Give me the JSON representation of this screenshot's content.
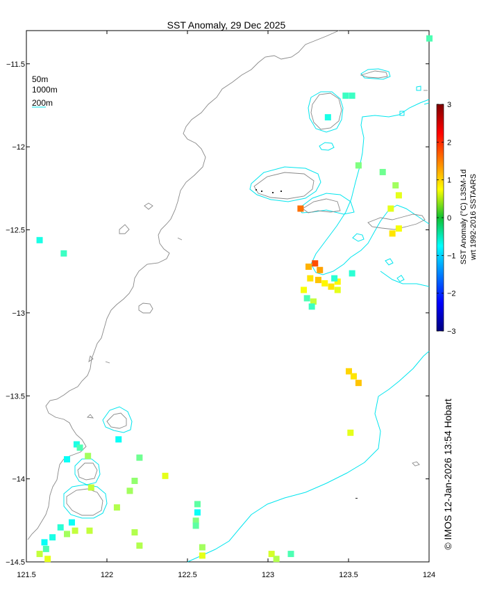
{
  "title": "SST Anomaly, 29 Dec 2025",
  "contour_legend": [
    "50m",
    "1000m",
    "200m"
  ],
  "colorbar": {
    "label_line1": "SST Anomaly (°C) L3SM-1d",
    "label_line2": "wrt 1992-2016 SSTAARS",
    "range": [
      -3,
      3
    ],
    "ticks": [
      "3",
      "2",
      "1",
      "0",
      "-1",
      "-2",
      "-3"
    ],
    "colormap": "jet"
  },
  "axes": {
    "x_ticks": [
      "121.5",
      "122",
      "122.5",
      "123",
      "123.5",
      "124"
    ],
    "y_ticks": [
      "-11.5",
      "-12",
      "-12.5",
      "-13",
      "-13.5",
      "-14",
      "-14.5"
    ],
    "x_range": [
      121.5,
      124
    ],
    "y_range": [
      -14.5,
      -11.3
    ]
  },
  "credit": "© IMOS 12-Jan-2026 13:54 Hobart",
  "colors": {
    "contour_200m": "#00e5ee",
    "contour_gray": "#888888",
    "pixel_green": "#10c030",
    "pixel_lime": "#88e010",
    "pixel_yellow": "#d8ee10",
    "pixel_orange": "#f0c000",
    "pixel_teal": "#00c0a0"
  },
  "sst_pixels": [
    {
      "lon": 124.0,
      "lat": -11.345,
      "anom": -0.3
    },
    {
      "lon": 123.48,
      "lat": -11.69,
      "anom": -0.4
    },
    {
      "lon": 123.52,
      "lat": -11.69,
      "anom": -0.4
    },
    {
      "lon": 123.37,
      "lat": -11.82,
      "anom": -0.6
    },
    {
      "lon": 123.56,
      "lat": -12.11,
      "anom": 0.0
    },
    {
      "lon": 123.71,
      "lat": -12.15,
      "anom": -0.1
    },
    {
      "lon": 123.79,
      "lat": -12.23,
      "anom": 0.2
    },
    {
      "lon": 123.81,
      "lat": -12.29,
      "anom": 0.6
    },
    {
      "lon": 123.76,
      "lat": -12.37,
      "anom": 0.6
    },
    {
      "lon": 123.2,
      "lat": -12.37,
      "anom": 1.6
    },
    {
      "lon": 123.77,
      "lat": -12.52,
      "anom": 0.9
    },
    {
      "lon": 123.81,
      "lat": -12.49,
      "anom": 0.7
    },
    {
      "lon": 121.58,
      "lat": -12.56,
      "anom": -0.6
    },
    {
      "lon": 121.73,
      "lat": -12.64,
      "anom": -0.4
    },
    {
      "lon": 123.25,
      "lat": -12.72,
      "anom": 1.2
    },
    {
      "lon": 123.29,
      "lat": -12.7,
      "anom": 1.8
    },
    {
      "lon": 123.32,
      "lat": -12.74,
      "anom": 1.3
    },
    {
      "lon": 123.26,
      "lat": -12.79,
      "anom": 0.9
    },
    {
      "lon": 123.31,
      "lat": -12.8,
      "anom": 1.1
    },
    {
      "lon": 123.35,
      "lat": -12.82,
      "anom": 0.8
    },
    {
      "lon": 123.39,
      "lat": -12.84,
      "anom": 0.9
    },
    {
      "lon": 123.43,
      "lat": -12.81,
      "anom": 0.8
    },
    {
      "lon": 123.43,
      "lat": -12.86,
      "anom": 0.6
    },
    {
      "lon": 123.41,
      "lat": -12.79,
      "anom": -0.5
    },
    {
      "lon": 123.52,
      "lat": -12.76,
      "anom": -0.5
    },
    {
      "lon": 123.22,
      "lat": -12.86,
      "anom": 0.7
    },
    {
      "lon": 123.24,
      "lat": -12.91,
      "anom": -0.3
    },
    {
      "lon": 123.28,
      "lat": -12.93,
      "anom": 0.4
    },
    {
      "lon": 123.27,
      "lat": -12.96,
      "anom": -0.4
    },
    {
      "lon": 123.5,
      "lat": -13.35,
      "anom": 1.0
    },
    {
      "lon": 123.53,
      "lat": -13.38,
      "anom": 0.9
    },
    {
      "lon": 123.56,
      "lat": -13.42,
      "anom": 1.1
    },
    {
      "lon": 123.51,
      "lat": -13.72,
      "anom": 0.6
    },
    {
      "lon": 121.81,
      "lat": -13.79,
      "anom": -0.6
    },
    {
      "lon": 121.83,
      "lat": -13.81,
      "anom": -0.3
    },
    {
      "lon": 122.07,
      "lat": -13.76,
      "anom": -0.7
    },
    {
      "lon": 121.75,
      "lat": -13.88,
      "anom": -0.7
    },
    {
      "lon": 121.88,
      "lat": -13.86,
      "anom": 0.2
    },
    {
      "lon": 122.2,
      "lat": -13.87,
      "anom": -0.1
    },
    {
      "lon": 122.36,
      "lat": -13.98,
      "anom": 0.6
    },
    {
      "lon": 121.9,
      "lat": -14.05,
      "anom": 0.4
    },
    {
      "lon": 122.17,
      "lat": -14.01,
      "anom": 0.1
    },
    {
      "lon": 122.14,
      "lat": -14.07,
      "anom": 0.2
    },
    {
      "lon": 122.06,
      "lat": -14.17,
      "anom": 0.3
    },
    {
      "lon": 122.56,
      "lat": -14.15,
      "anom": -0.2
    },
    {
      "lon": 122.56,
      "lat": -14.2,
      "anom": -0.7
    },
    {
      "lon": 122.55,
      "lat": -14.25,
      "anom": 0.0
    },
    {
      "lon": 122.55,
      "lat": -14.28,
      "anom": -0.2
    },
    {
      "lon": 121.78,
      "lat": -14.26,
      "anom": -0.7
    },
    {
      "lon": 121.71,
      "lat": -14.29,
      "anom": -0.5
    },
    {
      "lon": 121.8,
      "lat": -14.31,
      "anom": 0.4
    },
    {
      "lon": 121.75,
      "lat": -14.33,
      "anom": 0.2
    },
    {
      "lon": 121.66,
      "lat": -14.35,
      "anom": -0.6
    },
    {
      "lon": 121.61,
      "lat": -14.38,
      "anom": -0.7
    },
    {
      "lon": 121.62,
      "lat": -14.42,
      "anom": -0.3
    },
    {
      "lon": 121.58,
      "lat": -14.45,
      "anom": 0.4
    },
    {
      "lon": 121.63,
      "lat": -14.48,
      "anom": 0.6
    },
    {
      "lon": 121.89,
      "lat": -14.31,
      "anom": 0.4
    },
    {
      "lon": 122.17,
      "lat": -14.32,
      "anom": 0.3
    },
    {
      "lon": 122.2,
      "lat": -14.4,
      "anom": 0.3
    },
    {
      "lon": 122.59,
      "lat": -14.41,
      "anom": 0.2
    },
    {
      "lon": 122.59,
      "lat": -14.46,
      "anom": 0.6
    },
    {
      "lon": 123.02,
      "lat": -14.45,
      "anom": 0.5
    },
    {
      "lon": 123.05,
      "lat": -14.48,
      "anom": 0.3
    },
    {
      "lon": 123.14,
      "lat": -14.45,
      "anom": -0.3
    }
  ]
}
